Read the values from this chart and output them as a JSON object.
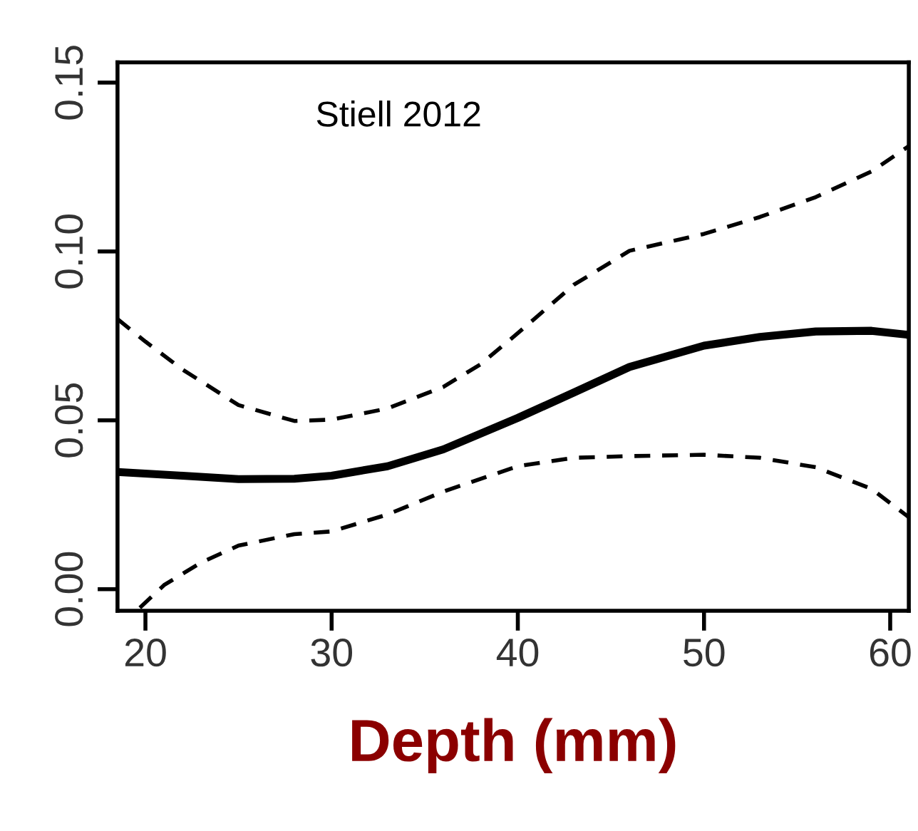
{
  "chart_data": {
    "type": "line",
    "xlabel": "Depth (mm)",
    "annotations": [
      "Stiell 2012"
    ],
    "xlim": [
      18.5,
      61
    ],
    "ylim": [
      -0.0064,
      0.156
    ],
    "xticks": [
      20,
      30,
      40,
      50,
      60
    ],
    "yticks": [
      {
        "value": 0,
        "label": "0.00"
      },
      {
        "value": 0.05,
        "label": "0.05"
      },
      {
        "value": 0.1,
        "label": "0.10"
      },
      {
        "value": 0.15,
        "label": "0.15"
      }
    ],
    "grid": false,
    "legend": false,
    "marker": "none",
    "series": [
      {
        "color": "#000000",
        "line_style": "solid",
        "x": [
          18.5,
          22,
          25,
          28,
          30,
          33,
          36,
          40,
          43,
          46,
          50,
          53,
          56,
          59,
          61
        ],
        "values": [
          0.0347,
          0.0336,
          0.0326,
          0.0327,
          0.0336,
          0.0364,
          0.0414,
          0.0507,
          0.0582,
          0.0658,
          0.0721,
          0.0747,
          0.0763,
          0.0765,
          0.0753
        ]
      },
      {
        "color": "#000000",
        "line_style": "dashed",
        "x": [
          18.5,
          20,
          22,
          25,
          28,
          30,
          33,
          36,
          38,
          40,
          43,
          46,
          50,
          53,
          56,
          59,
          61
        ],
        "values": [
          0.08,
          0.0733,
          0.065,
          0.0545,
          0.0498,
          0.0502,
          0.0535,
          0.0599,
          0.0666,
          0.0758,
          0.0901,
          0.1002,
          0.1052,
          0.1102,
          0.1161,
          0.1237,
          0.1312
        ]
      },
      {
        "color": "#000000",
        "line_style": "dashed",
        "x": [
          19.7,
          21,
          23,
          25,
          28,
          30,
          33,
          36,
          40,
          43,
          46,
          50,
          53,
          56,
          59,
          61
        ],
        "values": [
          -0.0055,
          0.0012,
          0.0079,
          0.0129,
          0.0163,
          0.0171,
          0.0221,
          0.0289,
          0.0364,
          0.0389,
          0.0394,
          0.0398,
          0.0389,
          0.0361,
          0.0297,
          0.0213
        ]
      }
    ]
  }
}
